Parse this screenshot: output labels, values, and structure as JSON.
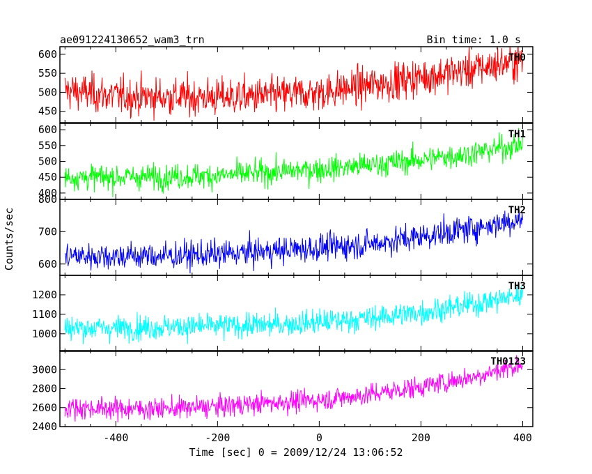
{
  "header": {
    "title": "ae091224130652_wam3_trn",
    "bin_time": "Bin time: 1.0 s"
  },
  "axes": {
    "xlabel": "Time [sec] 0 = 2009/12/24 13:06:52",
    "ylabel": "Counts/sec"
  },
  "chart_data": {
    "type": "line",
    "title": "ae091224130652_wam3_trn",
    "subtitle": "Bin time: 1.0 s",
    "xlabel": "Time [sec] 0 = 2009/12/24 13:06:52",
    "ylabel": "Counts/sec",
    "xlim": [
      -510,
      420
    ],
    "x_ticks": [
      -400,
      -200,
      0,
      200,
      400
    ],
    "grid": false,
    "series": [
      {
        "name": "TH0",
        "color": "#ff0000",
        "ylim": [
          420,
          620
        ],
        "y_ticks": [
          450,
          500,
          550,
          600
        ],
        "x": [
          -500,
          -400,
          -300,
          -200,
          -100,
          0,
          100,
          200,
          300,
          400
        ],
        "values": [
          505,
          490,
          488,
          487,
          490,
          500,
          518,
          540,
          560,
          585
        ],
        "noise": 35
      },
      {
        "name": "TH1",
        "color": "#00ff00",
        "ylim": [
          380,
          620
        ],
        "y_ticks": [
          400,
          450,
          500,
          550,
          600
        ],
        "x": [
          -500,
          -400,
          -300,
          -200,
          -100,
          0,
          100,
          200,
          300,
          400
        ],
        "values": [
          450,
          450,
          452,
          455,
          465,
          475,
          488,
          505,
          525,
          555
        ],
        "noise": 28
      },
      {
        "name": "TH2",
        "color": "#0000ff",
        "ylim": [
          565,
          800
        ],
        "y_ticks": [
          600,
          700,
          800
        ],
        "x": [
          -500,
          -400,
          -300,
          -200,
          -100,
          0,
          100,
          200,
          300,
          400
        ],
        "values": [
          625,
          625,
          625,
          630,
          640,
          650,
          662,
          685,
          710,
          740
        ],
        "noise": 30
      },
      {
        "name": "TH3",
        "color": "#00ffff",
        "ylim": [
          910,
          1300
        ],
        "y_ticks": [
          1000,
          1100,
          1200
        ],
        "x": [
          -500,
          -400,
          -300,
          -200,
          -100,
          0,
          100,
          200,
          300,
          400
        ],
        "values": [
          1030,
          1030,
          1035,
          1040,
          1045,
          1060,
          1080,
          1110,
          1150,
          1200
        ],
        "noise": 45
      },
      {
        "name": "TH0123",
        "color": "#ff00ff",
        "ylim": [
          2400,
          3200
        ],
        "y_ticks": [
          2400,
          2600,
          2800,
          3000
        ],
        "x": [
          -500,
          -400,
          -300,
          -200,
          -100,
          0,
          100,
          200,
          300,
          400
        ],
        "values": [
          2600,
          2590,
          2590,
          2610,
          2650,
          2680,
          2740,
          2820,
          2920,
          3060
        ],
        "noise": 80
      }
    ]
  }
}
